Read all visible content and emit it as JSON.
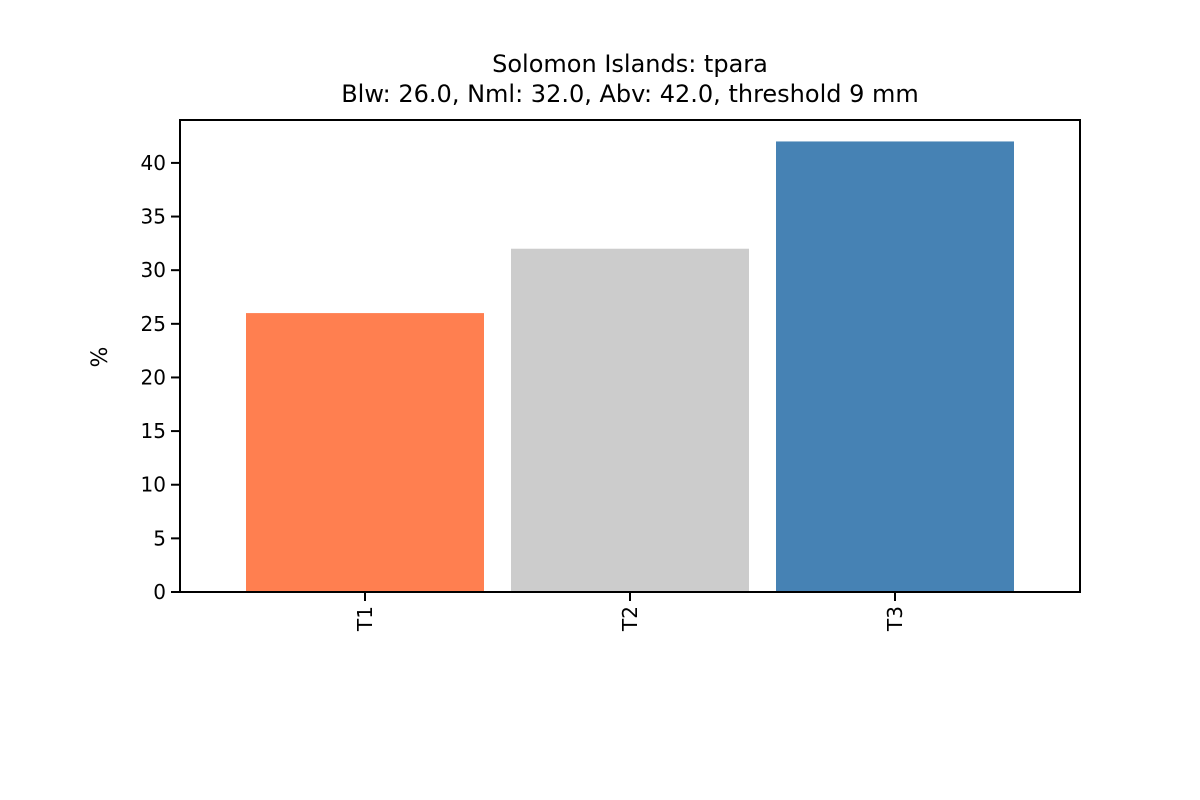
{
  "chart_data": {
    "type": "bar",
    "title": "Solomon Islands: tpara",
    "subtitle": "Blw: 26.0, Nml: 32.0, Abv: 42.0, threshold 9 mm",
    "ylabel": "%",
    "xlabel": "",
    "categories": [
      "T1",
      "T2",
      "T3"
    ],
    "values": [
      26.0,
      32.0,
      42.0
    ],
    "colors": [
      "#ff7f50",
      "#cccccc",
      "#4682b4"
    ],
    "ylim": [
      0,
      44
    ],
    "yticks": [
      0,
      5,
      10,
      15,
      20,
      25,
      30,
      35,
      40
    ],
    "grid": false,
    "legend": "none"
  }
}
